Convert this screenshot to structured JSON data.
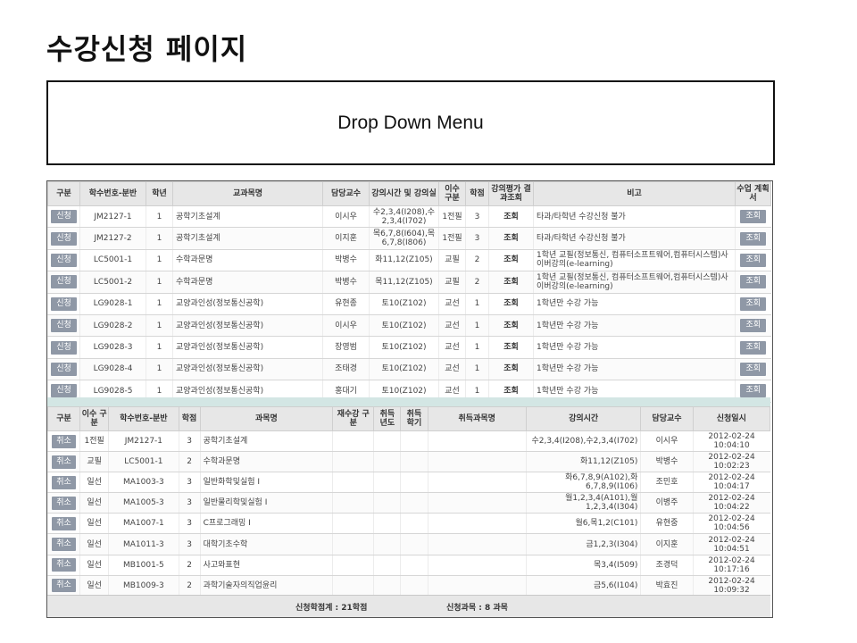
{
  "page_title": "수강신청 페이지",
  "dropdown_label": "Drop Down Menu",
  "course_table": {
    "headers": [
      "구분",
      "학수번호-분반",
      "학년",
      "교과목명",
      "담당교수",
      "강의시간 및 강의실",
      "이수 구분",
      "학점",
      "강의평가 결과조회",
      "비고",
      "수업 계획서"
    ],
    "rows": [
      {
        "action": "신청",
        "code": "JM2127-1",
        "grade": "1",
        "name": "공학기초설계",
        "prof": "이시우",
        "time": "수2,3,4(I208),수2,3,4(I702)",
        "type": "1전필",
        "credit": "3",
        "eval": "조회",
        "note": "타과/타학년 수강신청 불가",
        "plan": "조회"
      },
      {
        "action": "신청",
        "code": "JM2127-2",
        "grade": "1",
        "name": "공학기초설계",
        "prof": "이지훈",
        "time": "목6,7,8(I604),목6,7,8(I806)",
        "type": "1전필",
        "credit": "3",
        "eval": "조회",
        "note": "타과/타학년 수강신청 불가",
        "plan": "조회"
      },
      {
        "action": "신청",
        "code": "LC5001-1",
        "grade": "1",
        "name": "수학과문명",
        "prof": "박병수",
        "time": "화11,12(Z105)",
        "type": "교필",
        "credit": "2",
        "eval": "조회",
        "note": "1학년 교필(정보통신, 컴퓨터소프트웨어,컴퓨터시스템)사이버강의(e-learning)",
        "plan": "조회"
      },
      {
        "action": "신청",
        "code": "LC5001-2",
        "grade": "1",
        "name": "수학과문명",
        "prof": "박병수",
        "time": "목11,12(Z105)",
        "type": "교필",
        "credit": "2",
        "eval": "조회",
        "note": "1학년 교필(정보통신, 컴퓨터소프트웨어,컴퓨터시스템)사이버강의(e-learning)",
        "plan": "조회"
      },
      {
        "action": "신청",
        "code": "LG9028-1",
        "grade": "1",
        "name": "교양과인성(정보통신공학)",
        "prof": "유현종",
        "time": "토10(Z102)",
        "type": "교선",
        "credit": "1",
        "eval": "조회",
        "note": "1학년만 수강 가능",
        "plan": "조회"
      },
      {
        "action": "신청",
        "code": "LG9028-2",
        "grade": "1",
        "name": "교양과인성(정보통신공학)",
        "prof": "이시우",
        "time": "토10(Z102)",
        "type": "교선",
        "credit": "1",
        "eval": "조회",
        "note": "1학년만 수강 가능",
        "plan": "조회"
      },
      {
        "action": "신청",
        "code": "LG9028-3",
        "grade": "1",
        "name": "교양과인성(정보통신공학)",
        "prof": "장영범",
        "time": "토10(Z102)",
        "type": "교선",
        "credit": "1",
        "eval": "조회",
        "note": "1학년만 수강 가능",
        "plan": "조회"
      },
      {
        "action": "신청",
        "code": "LG9028-4",
        "grade": "1",
        "name": "교양과인성(정보통신공학)",
        "prof": "조태경",
        "time": "토10(Z102)",
        "type": "교선",
        "credit": "1",
        "eval": "조회",
        "note": "1학년만 수강 가능",
        "plan": "조회"
      },
      {
        "action": "신청",
        "code": "LG9028-5",
        "grade": "1",
        "name": "교양과인성(정보통신공학)",
        "prof": "홍대기",
        "time": "토10(Z102)",
        "type": "교선",
        "credit": "1",
        "eval": "조회",
        "note": "1학년만 수강 가능",
        "plan": "조회"
      }
    ]
  },
  "enroll_table": {
    "headers": [
      "구분",
      "이수 구분",
      "학수번호-분반",
      "학점",
      "과목명",
      "재수강 구분",
      "취득 년도",
      "취득 학기",
      "취득과목명",
      "강의시간",
      "담당교수",
      "신청일시"
    ],
    "rows": [
      {
        "action": "취소",
        "type": "1전필",
        "code": "JM2127-1",
        "credit": "3",
        "name": "공학기초설계",
        "retake": "",
        "year": "",
        "term": "",
        "acq": "",
        "time": "수2,3,4(I208),수2,3,4(I702)",
        "prof": "이시우",
        "date": "2012-02-24 10:04:10"
      },
      {
        "action": "취소",
        "type": "교필",
        "code": "LC5001-1",
        "credit": "2",
        "name": "수학과문명",
        "retake": "",
        "year": "",
        "term": "",
        "acq": "",
        "time": "화11,12(Z105)",
        "prof": "박병수",
        "date": "2012-02-24 10:02:23"
      },
      {
        "action": "취소",
        "type": "일선",
        "code": "MA1003-3",
        "credit": "3",
        "name": "일반화학및실험 I",
        "retake": "",
        "year": "",
        "term": "",
        "acq": "",
        "time": "화6,7,8,9(A102),화6,7,8,9(I106)",
        "prof": "조민호",
        "date": "2012-02-24 10:04:17"
      },
      {
        "action": "취소",
        "type": "일선",
        "code": "MA1005-3",
        "credit": "3",
        "name": "일반물리학및실험 I",
        "retake": "",
        "year": "",
        "term": "",
        "acq": "",
        "time": "월1,2,3,4(A101),월1,2,3,4(I304)",
        "prof": "이병주",
        "date": "2012-02-24 10:04:22"
      },
      {
        "action": "취소",
        "type": "일선",
        "code": "MA1007-1",
        "credit": "3",
        "name": "C프로그래밍 I",
        "retake": "",
        "year": "",
        "term": "",
        "acq": "",
        "time": "월6,목1,2(C101)",
        "prof": "유현중",
        "date": "2012-02-24 10:04:56"
      },
      {
        "action": "취소",
        "type": "일선",
        "code": "MA1011-3",
        "credit": "3",
        "name": "대학기초수학",
        "retake": "",
        "year": "",
        "term": "",
        "acq": "",
        "time": "금1,2,3(I304)",
        "prof": "이지훈",
        "date": "2012-02-24 10:04:51"
      },
      {
        "action": "취소",
        "type": "일선",
        "code": "MB1001-5",
        "credit": "2",
        "name": "사고와표현",
        "retake": "",
        "year": "",
        "term": "",
        "acq": "",
        "time": "목3,4(I509)",
        "prof": "조경덕",
        "date": "2012-02-24 10:17:16"
      },
      {
        "action": "취소",
        "type": "일선",
        "code": "MB1009-3",
        "credit": "2",
        "name": "과학기술자의직업윤리",
        "retake": "",
        "year": "",
        "term": "",
        "acq": "",
        "time": "금5,6(I104)",
        "prof": "박효진",
        "date": "2012-02-24 10:09:32"
      }
    ]
  },
  "summary": {
    "total_credits": "신청학점계 : 21학점",
    "total_courses": "신청과목 : 8 과목"
  }
}
